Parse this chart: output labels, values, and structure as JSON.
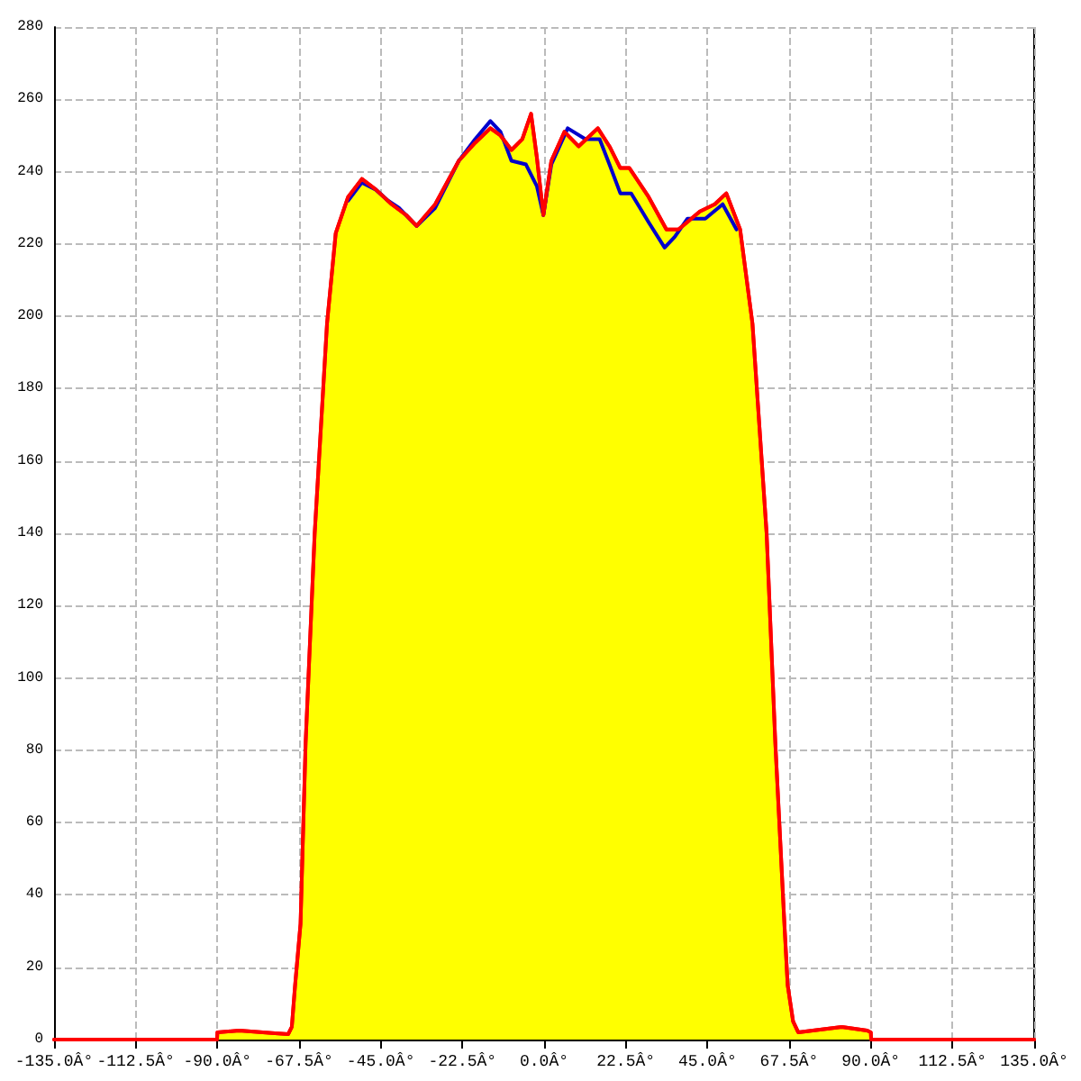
{
  "chart_data": {
    "type": "line",
    "xlim": [
      -135,
      135
    ],
    "ylim": [
      0,
      280
    ],
    "xticks": [
      {
        "value": -135,
        "label": "-135.0Â°"
      },
      {
        "value": -112.5,
        "label": "-112.5Â°"
      },
      {
        "value": -90,
        "label": "-90.0Â°"
      },
      {
        "value": -67.5,
        "label": "-67.5Â°"
      },
      {
        "value": -45,
        "label": "-45.0Â°"
      },
      {
        "value": -22.5,
        "label": "-22.5Â°"
      },
      {
        "value": 0,
        "label": "0.0Â°"
      },
      {
        "value": 22.5,
        "label": "22.5Â°"
      },
      {
        "value": 45,
        "label": "45.0Â°"
      },
      {
        "value": 67.5,
        "label": "67.5Â°"
      },
      {
        "value": 90,
        "label": "90.0Â°"
      },
      {
        "value": 112.5,
        "label": "112.5Â°"
      },
      {
        "value": 135,
        "label": "135.0Â°"
      }
    ],
    "yticks": [
      0,
      20,
      40,
      60,
      80,
      100,
      120,
      140,
      160,
      180,
      200,
      220,
      240,
      260,
      280
    ],
    "grid": true,
    "marker": "none",
    "line_style": "solid",
    "series": [
      {
        "color": "#0000cc",
        "x": [
          -54,
          -50.2,
          -46.3,
          -43,
          -40,
          -35.1,
          -30,
          -23.5,
          -19,
          -14.8,
          -12,
          -9,
          -5,
          -2,
          -0.2,
          2,
          6.5,
          11.4,
          15.3,
          18,
          21,
          24,
          28.8,
          33.2,
          36,
          39.5,
          44.4,
          49.2,
          53
        ],
        "values": [
          232,
          237,
          235,
          232,
          230,
          225,
          230,
          243,
          249,
          254,
          251,
          243,
          242,
          236,
          228,
          242,
          252,
          249,
          249,
          242,
          234,
          234,
          226,
          219,
          222,
          227,
          227,
          231,
          224
        ]
      },
      {
        "type": "area",
        "color": "#ff0000",
        "x": [
          -135,
          -90.1,
          -90,
          -84,
          -75,
          -70.5,
          -69.5,
          -68.6,
          -67.1,
          -65.7,
          -63.2,
          -59.8,
          -57.4,
          -54,
          -50.2,
          -46.3,
          -42,
          -38,
          -35.1,
          -30,
          -23.5,
          -19,
          -14.8,
          -12,
          -9,
          -6,
          -3.6,
          -2,
          -0.2,
          2,
          5.6,
          9.5,
          14.8,
          18,
          21,
          23.5,
          28.8,
          33.7,
          37,
          42.9,
          47,
          50.2,
          54,
          57.4,
          61.3,
          63.7,
          66.2,
          67.1,
          68.6,
          70,
          82,
          89,
          90,
          90.1,
          135
        ],
        "values": [
          0,
          0,
          2,
          2.5,
          1.8,
          1.5,
          3.5,
          15,
          32,
          82,
          140,
          198,
          223,
          233,
          238,
          235,
          231,
          228,
          225,
          231,
          243,
          248,
          252,
          250,
          246,
          249,
          256,
          244,
          228,
          243,
          251,
          247,
          252,
          247,
          241,
          241,
          233,
          224,
          224,
          229,
          231,
          234,
          224,
          198,
          140,
          82,
          32,
          15,
          5,
          2,
          3.5,
          2.5,
          2,
          0,
          0
        ]
      }
    ]
  }
}
